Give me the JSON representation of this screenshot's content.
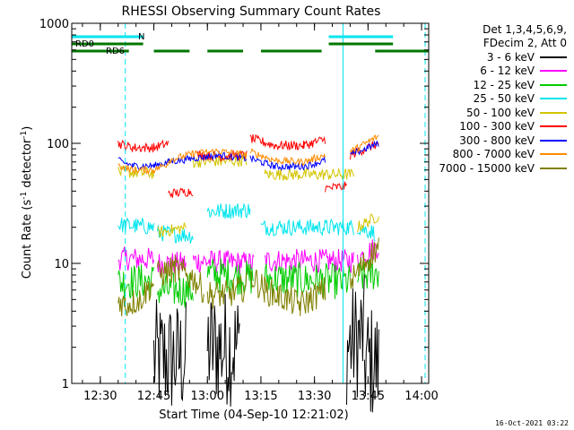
{
  "chart_data": {
    "type": "line",
    "title": "RHESSI Observing Summary Count Rates",
    "xlabel": "Start Time (04-Sep-10 12:21:02)",
    "ylabel_main": "Count Rate (s",
    "ylabel_sup1": "-1",
    "ylabel_mid": " detector",
    "ylabel_sup2": "-1",
    "ylabel_end": ")",
    "y_scale": "log",
    "ylim": [
      1,
      1000
    ],
    "xlim_min": [
      21,
      121
    ],
    "x_ticks": [
      {
        "min": 29,
        "label": "12:30"
      },
      {
        "min": 44,
        "label": "12:45"
      },
      {
        "min": 59,
        "label": "13:00"
      },
      {
        "min": 74,
        "label": "13:15"
      },
      {
        "min": 89,
        "label": "13:30"
      },
      {
        "min": 104,
        "label": "13:45"
      },
      {
        "min": 119,
        "label": "14:00"
      }
    ],
    "y_ticks": [
      {
        "value": 1,
        "label": "1"
      },
      {
        "value": 10,
        "label": "10"
      },
      {
        "value": 100,
        "label": "100"
      },
      {
        "value": 1000,
        "label": "1000"
      }
    ],
    "legend_header": [
      "Det 1,3,4,5,6,9,",
      "FDecim 2, Att 0"
    ],
    "legend_position": "right",
    "timestamp": "16-Oct-2021 03:22",
    "series": [
      {
        "name": "3 - 6 keV",
        "color": "#000000",
        "segments": [
          [
            [
              44,
              1.6
            ],
            [
              53,
              1.6
            ]
          ],
          [
            [
              59,
              2.0
            ],
            [
              68,
              2.0
            ]
          ],
          [
            [
              98,
              2.0
            ],
            [
              103,
              2.6
            ]
          ],
          [
            [
              103,
              1.6
            ],
            [
              107,
              1.4
            ]
          ]
        ],
        "noise": 0.5
      },
      {
        "name": "6 - 12 keV",
        "color": "#ff00ff",
        "segments": [
          [
            [
              34,
              11
            ],
            [
              44,
              10.8
            ]
          ],
          [
            [
              45,
              10.0
            ],
            [
              53,
              10.0
            ]
          ],
          [
            [
              55,
              10.5
            ],
            [
              72,
              10.0
            ]
          ],
          [
            [
              75,
              10.5
            ],
            [
              100,
              10.5
            ]
          ],
          [
            [
              101,
              11
            ],
            [
              107,
              14
            ]
          ]
        ],
        "noise": 0.1
      },
      {
        "name": "12 - 25 keV",
        "color": "#00cc00",
        "segments": [
          [
            [
              34,
              7.0
            ],
            [
              44,
              7.2
            ]
          ],
          [
            [
              45,
              6.0
            ],
            [
              55,
              6.0
            ]
          ],
          [
            [
              59,
              8.2
            ],
            [
              72,
              7.5
            ]
          ],
          [
            [
              75,
              7.5
            ],
            [
              99,
              7.0
            ]
          ],
          [
            [
              101,
              7.5
            ],
            [
              107,
              8.5
            ]
          ]
        ],
        "noise": 0.15
      },
      {
        "name": "25 - 50 keV",
        "color": "#00e5ee",
        "segments": [
          [
            [
              34,
              21
            ],
            [
              44,
              20
            ]
          ],
          [
            [
              45,
              18
            ],
            [
              55,
              17
            ]
          ],
          [
            [
              59,
              27
            ],
            [
              71,
              28
            ]
          ],
          [
            [
              74,
              20
            ],
            [
              100,
              20
            ]
          ],
          [
            [
              101,
              20
            ],
            [
              106,
              18
            ]
          ]
        ],
        "noise": 0.07
      },
      {
        "name": "50 - 100 keV",
        "color": "#d4c400",
        "segments": [
          [
            [
              34,
              58
            ],
            [
              44,
              56
            ]
          ],
          [
            [
              45,
              18
            ],
            [
              53,
              20
            ]
          ],
          [
            [
              55,
              70
            ],
            [
              70,
              72
            ]
          ],
          [
            [
              75,
              55
            ],
            [
              100,
              55
            ]
          ],
          [
            [
              101,
              20
            ],
            [
              107,
              25
            ]
          ]
        ],
        "noise": 0.05
      },
      {
        "name": "100 - 300 keV",
        "color": "#ff0000",
        "segments": [
          [
            [
              34,
              100
            ],
            [
              38,
              92
            ],
            [
              44,
              92
            ],
            [
              48,
              100
            ]
          ],
          [
            [
              48,
              38
            ],
            [
              55,
              40
            ]
          ],
          [
            [
              56,
              80
            ],
            [
              63,
              78
            ],
            [
              70,
              80
            ]
          ],
          [
            [
              71,
              110
            ],
            [
              78,
              96
            ],
            [
              86,
              96
            ],
            [
              92,
              108
            ]
          ],
          [
            [
              92,
              42
            ],
            [
              98,
              44
            ]
          ],
          [
            [
              99,
              80
            ],
            [
              107,
              100
            ]
          ]
        ],
        "noise": 0.04
      },
      {
        "name": "300 - 800 keV",
        "color": "#0000ff",
        "segments": [
          [
            [
              34,
              72
            ],
            [
              38,
              65
            ],
            [
              44,
              65
            ],
            [
              48,
              70
            ]
          ],
          [
            [
              48,
              70
            ],
            [
              55,
              75
            ],
            [
              62,
              80
            ],
            [
              70,
              75
            ]
          ],
          [
            [
              71,
              75
            ],
            [
              78,
              64
            ],
            [
              86,
              64
            ],
            [
              92,
              72
            ]
          ],
          [
            [
              99,
              80
            ],
            [
              107,
              100
            ]
          ]
        ],
        "noise": 0.03
      },
      {
        "name": "800 - 7000 keV",
        "color": "#ff8c00",
        "segments": [
          [
            [
              34,
              65
            ],
            [
              38,
              60
            ],
            [
              44,
              60
            ],
            [
              48,
              68
            ]
          ],
          [
            [
              48,
              72
            ],
            [
              55,
              82
            ],
            [
              62,
              86
            ],
            [
              70,
              80
            ]
          ],
          [
            [
              71,
              85
            ],
            [
              78,
              72
            ],
            [
              86,
              70
            ],
            [
              92,
              80
            ]
          ],
          [
            [
              99,
              85
            ],
            [
              107,
              115
            ]
          ]
        ],
        "noise": 0.03
      },
      {
        "name": "7000 - 15000 keV",
        "color": "#808000",
        "segments": [
          [
            [
              34,
              5.0
            ],
            [
              36,
              4.5
            ],
            [
              40,
              5.0
            ],
            [
              44,
              7.0
            ]
          ],
          [
            [
              45,
              8
            ],
            [
              50,
              9
            ],
            [
              55,
              7.5
            ],
            [
              58,
              6.0
            ]
          ],
          [
            [
              59,
              5.5
            ],
            [
              65,
              5.5
            ],
            [
              70,
              6.5
            ]
          ],
          [
            [
              71,
              8
            ],
            [
              75,
              6
            ],
            [
              85,
              4.5
            ],
            [
              92,
              6
            ]
          ],
          [
            [
              99,
              7
            ],
            [
              103,
              10
            ],
            [
              107,
              14
            ]
          ]
        ],
        "noise": 0.12
      }
    ],
    "flag_labels": {
      "rd0": "RD0",
      "n": "N",
      "rd6": "RD6"
    },
    "flags": {
      "rd0": [
        [
          21,
          41
        ],
        [
          93,
          111
        ]
      ],
      "n": [
        [
          21,
          41
        ],
        [
          93,
          111
        ]
      ],
      "rd6": [
        [
          21,
          37
        ],
        [
          44,
          54
        ],
        [
          59,
          69
        ],
        [
          74,
          91
        ],
        [
          106,
          121
        ]
      ]
    },
    "cyan_solid_lines": [
      21,
      97
    ],
    "cyan_dashed_lines": [
      36,
      120
    ]
  }
}
